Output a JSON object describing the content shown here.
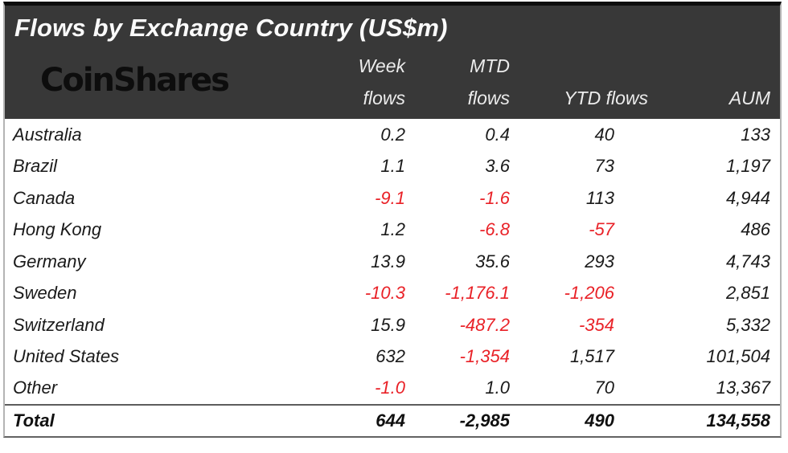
{
  "title": "Flows by Exchange Country (US$m)",
  "brand": {
    "logo_text": "CoinShares"
  },
  "columns": {
    "week": "Week\nflows",
    "mtd": "MTD\nflows",
    "ytd": "YTD flows",
    "aum": "AUM"
  },
  "rows": [
    {
      "country": "Australia",
      "week": "0.2",
      "mtd": "0.4",
      "ytd": "40",
      "aum": "133"
    },
    {
      "country": "Brazil",
      "week": "1.1",
      "mtd": "3.6",
      "ytd": "73",
      "aum": "1,197"
    },
    {
      "country": "Canada",
      "week": "-9.1",
      "mtd": "-1.6",
      "ytd": "113",
      "aum": "4,944"
    },
    {
      "country": "Hong Kong",
      "week": "1.2",
      "mtd": "-6.8",
      "ytd": "-57",
      "aum": "486"
    },
    {
      "country": "Germany",
      "week": "13.9",
      "mtd": "35.6",
      "ytd": "293",
      "aum": "4,743"
    },
    {
      "country": "Sweden",
      "week": "-10.3",
      "mtd": "-1,176.1",
      "ytd": "-1,206",
      "aum": "2,851"
    },
    {
      "country": "Switzerland",
      "week": "15.9",
      "mtd": "-487.2",
      "ytd": "-354",
      "aum": "5,332"
    },
    {
      "country": "United States",
      "week": "632",
      "mtd": "-1,354",
      "ytd": "1,517",
      "aum": "101,504"
    },
    {
      "country": "Other",
      "week": "-1.0",
      "mtd": "1.0",
      "ytd": "70",
      "aum": "13,367"
    }
  ],
  "total": {
    "label": "Total",
    "week": "644",
    "mtd": "-2,985",
    "ytd": "490",
    "aum": "134,558"
  },
  "colors": {
    "header_bg": "#383838",
    "negative_red": "#e92127",
    "title_text": "#fafafa",
    "body_text": "#1a1a1a"
  },
  "chart_data": {
    "type": "table",
    "title": "Flows by Exchange Country (US$m)",
    "unit": "US$m",
    "columns": [
      "Week flows",
      "MTD flows",
      "YTD flows",
      "AUM"
    ],
    "rows": [
      {
        "country": "Australia",
        "week_flows": 0.2,
        "mtd_flows": 0.4,
        "ytd_flows": 40,
        "aum": 133
      },
      {
        "country": "Brazil",
        "week_flows": 1.1,
        "mtd_flows": 3.6,
        "ytd_flows": 73,
        "aum": 1197
      },
      {
        "country": "Canada",
        "week_flows": -9.1,
        "mtd_flows": -1.6,
        "ytd_flows": 113,
        "aum": 4944
      },
      {
        "country": "Hong Kong",
        "week_flows": 1.2,
        "mtd_flows": -6.8,
        "ytd_flows": -57,
        "aum": 486
      },
      {
        "country": "Germany",
        "week_flows": 13.9,
        "mtd_flows": 35.6,
        "ytd_flows": 293,
        "aum": 4743
      },
      {
        "country": "Sweden",
        "week_flows": -10.3,
        "mtd_flows": -1176.1,
        "ytd_flows": -1206,
        "aum": 2851
      },
      {
        "country": "Switzerland",
        "week_flows": 15.9,
        "mtd_flows": -487.2,
        "ytd_flows": -354,
        "aum": 5332
      },
      {
        "country": "United States",
        "week_flows": 632,
        "mtd_flows": -1354,
        "ytd_flows": 1517,
        "aum": 101504
      },
      {
        "country": "Other",
        "week_flows": -1.0,
        "mtd_flows": 1.0,
        "ytd_flows": 70,
        "aum": 13367
      }
    ],
    "total": {
      "country": "Total",
      "week_flows": 644,
      "mtd_flows": -2985,
      "ytd_flows": 490,
      "aum": 134558
    }
  }
}
